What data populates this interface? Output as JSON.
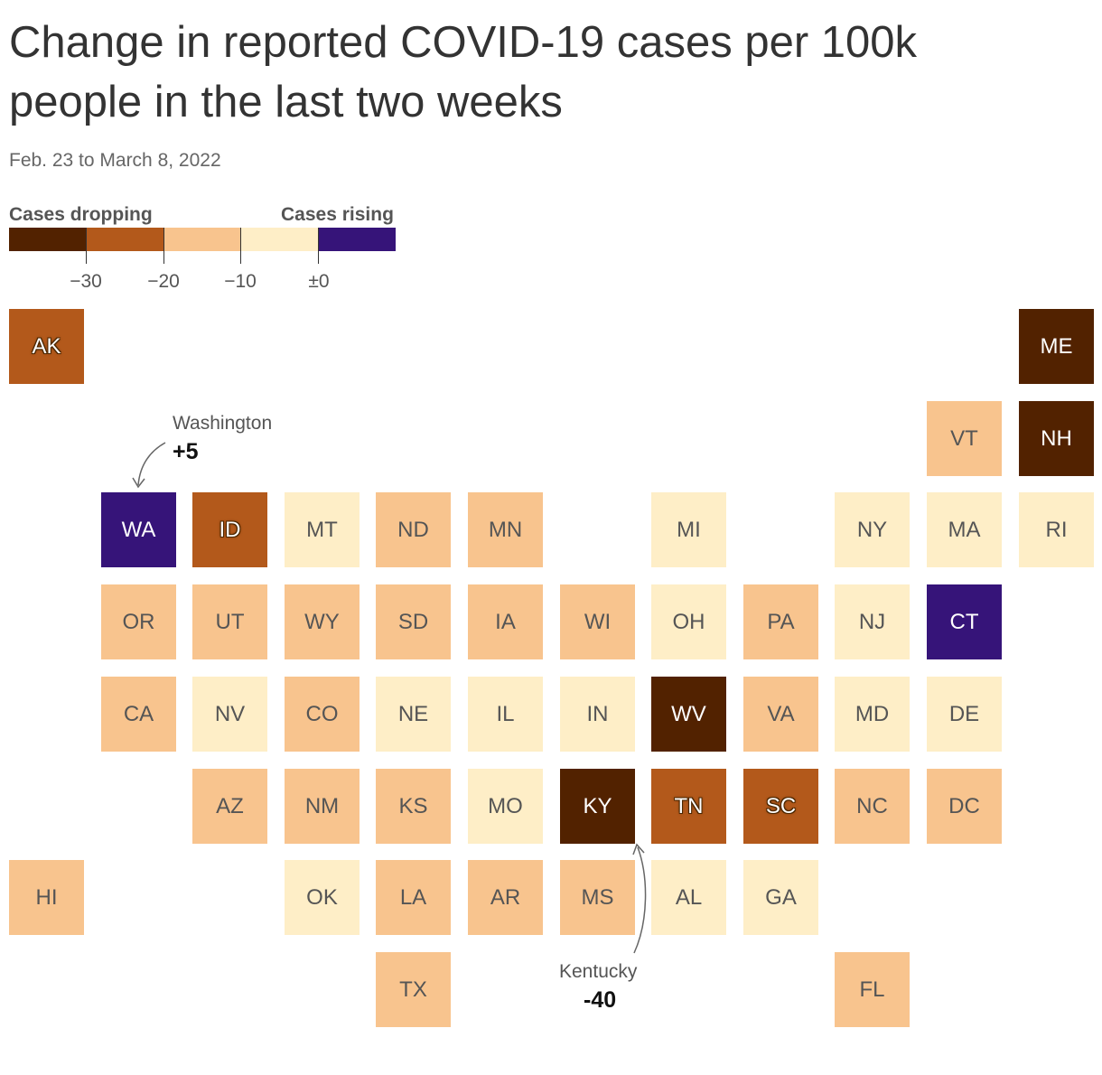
{
  "title": "Change in reported COVID-19 cases per 100k people in the last two weeks",
  "subtitle": "Feb. 23 to March 8, 2022",
  "legend": {
    "label_dropping": "Cases dropping",
    "label_rising": "Cases rising",
    "ticks": [
      "−30",
      "−20",
      "−10",
      "±0"
    ],
    "colors": [
      "#522200",
      "#b3591b",
      "#f8c48e",
      "#feeec7",
      "#361479"
    ]
  },
  "annotations": [
    {
      "state": "Washington",
      "value": "+5"
    },
    {
      "state": "Kentucky",
      "value": "-40"
    }
  ],
  "chart_data": {
    "type": "heatmap",
    "title": "Change in reported COVID-19 cases per 100k people in the last two weeks",
    "subtitle": "Feb. 23 to March 8, 2022",
    "bins": [
      {
        "id": "b1",
        "range": "< −30",
        "color": "#522200"
      },
      {
        "id": "b2",
        "range": "−30 to −20",
        "color": "#b3591b"
      },
      {
        "id": "b3",
        "range": "−20 to −10",
        "color": "#f8c48e"
      },
      {
        "id": "b4",
        "range": "−10 to ±0",
        "color": "#feeec7"
      },
      {
        "id": "b5",
        "range": "> ±0",
        "color": "#361479"
      }
    ],
    "states": [
      {
        "abbr": "AK",
        "col": 0,
        "row": 0,
        "bin": "b2"
      },
      {
        "abbr": "ME",
        "col": 11,
        "row": 0,
        "bin": "b1"
      },
      {
        "abbr": "VT",
        "col": 10,
        "row": 1,
        "bin": "b3"
      },
      {
        "abbr": "NH",
        "col": 11,
        "row": 1,
        "bin": "b1"
      },
      {
        "abbr": "WA",
        "col": 1,
        "row": 2,
        "bin": "b5"
      },
      {
        "abbr": "ID",
        "col": 2,
        "row": 2,
        "bin": "b2"
      },
      {
        "abbr": "MT",
        "col": 3,
        "row": 2,
        "bin": "b4"
      },
      {
        "abbr": "ND",
        "col": 4,
        "row": 2,
        "bin": "b3"
      },
      {
        "abbr": "MN",
        "col": 5,
        "row": 2,
        "bin": "b3"
      },
      {
        "abbr": "MI",
        "col": 7,
        "row": 2,
        "bin": "b4"
      },
      {
        "abbr": "NY",
        "col": 9,
        "row": 2,
        "bin": "b4"
      },
      {
        "abbr": "MA",
        "col": 10,
        "row": 2,
        "bin": "b4"
      },
      {
        "abbr": "RI",
        "col": 11,
        "row": 2,
        "bin": "b4"
      },
      {
        "abbr": "OR",
        "col": 1,
        "row": 3,
        "bin": "b3"
      },
      {
        "abbr": "UT",
        "col": 2,
        "row": 3,
        "bin": "b3"
      },
      {
        "abbr": "WY",
        "col": 3,
        "row": 3,
        "bin": "b3"
      },
      {
        "abbr": "SD",
        "col": 4,
        "row": 3,
        "bin": "b3"
      },
      {
        "abbr": "IA",
        "col": 5,
        "row": 3,
        "bin": "b3"
      },
      {
        "abbr": "WI",
        "col": 6,
        "row": 3,
        "bin": "b3"
      },
      {
        "abbr": "OH",
        "col": 7,
        "row": 3,
        "bin": "b4"
      },
      {
        "abbr": "PA",
        "col": 8,
        "row": 3,
        "bin": "b3"
      },
      {
        "abbr": "NJ",
        "col": 9,
        "row": 3,
        "bin": "b4"
      },
      {
        "abbr": "CT",
        "col": 10,
        "row": 3,
        "bin": "b5"
      },
      {
        "abbr": "CA",
        "col": 1,
        "row": 4,
        "bin": "b3"
      },
      {
        "abbr": "NV",
        "col": 2,
        "row": 4,
        "bin": "b4"
      },
      {
        "abbr": "CO",
        "col": 3,
        "row": 4,
        "bin": "b3"
      },
      {
        "abbr": "NE",
        "col": 4,
        "row": 4,
        "bin": "b4"
      },
      {
        "abbr": "IL",
        "col": 5,
        "row": 4,
        "bin": "b4"
      },
      {
        "abbr": "IN",
        "col": 6,
        "row": 4,
        "bin": "b4"
      },
      {
        "abbr": "WV",
        "col": 7,
        "row": 4,
        "bin": "b1"
      },
      {
        "abbr": "VA",
        "col": 8,
        "row": 4,
        "bin": "b3"
      },
      {
        "abbr": "MD",
        "col": 9,
        "row": 4,
        "bin": "b4"
      },
      {
        "abbr": "DE",
        "col": 10,
        "row": 4,
        "bin": "b4"
      },
      {
        "abbr": "AZ",
        "col": 2,
        "row": 5,
        "bin": "b3"
      },
      {
        "abbr": "NM",
        "col": 3,
        "row": 5,
        "bin": "b3"
      },
      {
        "abbr": "KS",
        "col": 4,
        "row": 5,
        "bin": "b3"
      },
      {
        "abbr": "MO",
        "col": 5,
        "row": 5,
        "bin": "b4"
      },
      {
        "abbr": "KY",
        "col": 6,
        "row": 5,
        "bin": "b1"
      },
      {
        "abbr": "TN",
        "col": 7,
        "row": 5,
        "bin": "b2"
      },
      {
        "abbr": "SC",
        "col": 8,
        "row": 5,
        "bin": "b2"
      },
      {
        "abbr": "NC",
        "col": 9,
        "row": 5,
        "bin": "b3"
      },
      {
        "abbr": "DC",
        "col": 10,
        "row": 5,
        "bin": "b3"
      },
      {
        "abbr": "HI",
        "col": 0,
        "row": 6,
        "bin": "b3"
      },
      {
        "abbr": "OK",
        "col": 3,
        "row": 6,
        "bin": "b4"
      },
      {
        "abbr": "LA",
        "col": 4,
        "row": 6,
        "bin": "b3"
      },
      {
        "abbr": "AR",
        "col": 5,
        "row": 6,
        "bin": "b3"
      },
      {
        "abbr": "MS",
        "col": 6,
        "row": 6,
        "bin": "b3"
      },
      {
        "abbr": "AL",
        "col": 7,
        "row": 6,
        "bin": "b4"
      },
      {
        "abbr": "GA",
        "col": 8,
        "row": 6,
        "bin": "b4"
      },
      {
        "abbr": "TX",
        "col": 4,
        "row": 7,
        "bin": "b3"
      },
      {
        "abbr": "FL",
        "col": 9,
        "row": 7,
        "bin": "b3"
      }
    ]
  }
}
